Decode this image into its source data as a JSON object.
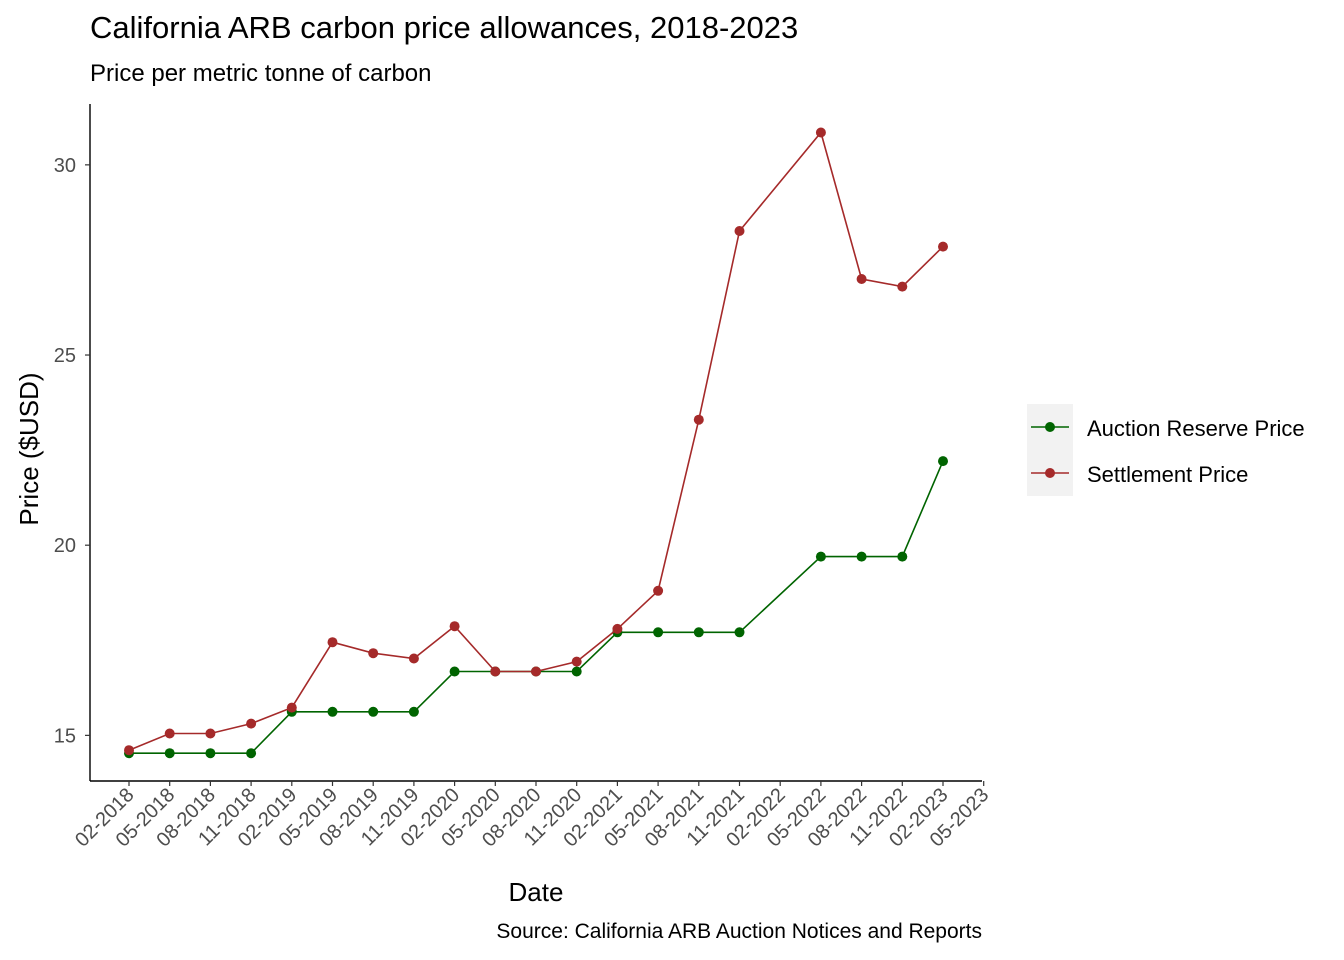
{
  "chart_data": {
    "type": "line",
    "title": "California ARB carbon price allowances, 2018-2023",
    "subtitle": "Price per metric tonne of carbon",
    "xlabel": "Date",
    "ylabel": "Price ($USD)",
    "caption": "Source: California ARB Auction Notices and Reports",
    "x_tick_labels": [
      "02-2018",
      "05-2018",
      "08-2018",
      "11-2018",
      "02-2019",
      "05-2019",
      "08-2019",
      "11-2019",
      "02-2020",
      "05-2020",
      "08-2020",
      "11-2020",
      "02-2021",
      "05-2021",
      "08-2021",
      "11-2021",
      "02-2022",
      "05-2022",
      "08-2022",
      "11-2022",
      "02-2023",
      "05-2023"
    ],
    "y_ticks": [
      15,
      20,
      25,
      30
    ],
    "ylim": [
      13.8,
      31.6
    ],
    "x": [
      "02-2018",
      "05-2018",
      "08-2018",
      "11-2018",
      "02-2019",
      "05-2019",
      "08-2019",
      "11-2019",
      "02-2020",
      "05-2020",
      "08-2020",
      "11-2020",
      "02-2021",
      "05-2021",
      "08-2021",
      "11-2021",
      "05-2022",
      "08-2022",
      "11-2022",
      "02-2023"
    ],
    "series": [
      {
        "name": "Auction Reserve Price",
        "color": "#006400",
        "values": [
          14.53,
          14.53,
          14.53,
          14.53,
          15.62,
          15.62,
          15.62,
          15.62,
          16.68,
          16.68,
          16.68,
          16.68,
          17.71,
          17.71,
          17.71,
          17.71,
          19.7,
          19.7,
          19.7,
          22.21
        ]
      },
      {
        "name": "Settlement Price",
        "color": "#a52a2a",
        "values": [
          14.61,
          15.05,
          15.05,
          15.31,
          15.73,
          17.45,
          17.16,
          17.02,
          17.87,
          16.68,
          16.68,
          16.94,
          17.8,
          18.8,
          23.3,
          28.26,
          30.85,
          27.0,
          26.8,
          27.85
        ]
      }
    ],
    "grid": false,
    "legend_position": "right"
  }
}
